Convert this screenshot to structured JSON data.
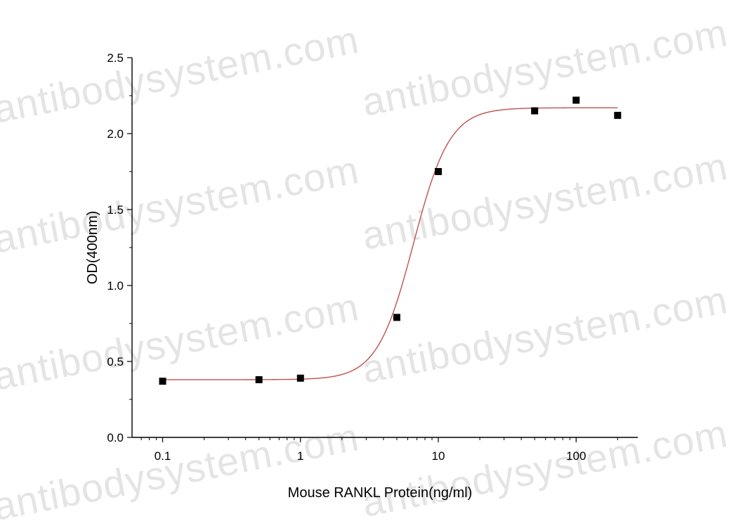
{
  "watermark": "antibodysystem.com",
  "chart_data": {
    "type": "scatter",
    "title": "",
    "xlabel": "Mouse RANKL Protein(ng/ml)",
    "ylabel": "OD(400nm)",
    "xscale": "log",
    "xlim": [
      0.06,
      280
    ],
    "ylim": [
      0.0,
      2.5
    ],
    "xticks": [
      0.1,
      1,
      10,
      100
    ],
    "xtick_labels": [
      "0.1",
      "1",
      "10",
      "100"
    ],
    "yticks": [
      0.0,
      0.5,
      1.0,
      1.5,
      2.0,
      2.5
    ],
    "ytick_labels": [
      "0.0",
      "0.5",
      "1.0",
      "1.5",
      "2.0",
      "2.5"
    ],
    "grid": false,
    "series": [
      {
        "marker": "square",
        "color": "#000000",
        "x": [
          0.1,
          0.5,
          1,
          5,
          10,
          50,
          100,
          200
        ],
        "y": [
          0.37,
          0.38,
          0.39,
          0.79,
          1.75,
          2.15,
          2.22,
          2.12
        ]
      }
    ],
    "fit_curve": {
      "type": "4PL",
      "color": "#c0504d",
      "bottom": 0.38,
      "top": 2.17,
      "ec50": 6.6,
      "hill": 3.3
    }
  }
}
